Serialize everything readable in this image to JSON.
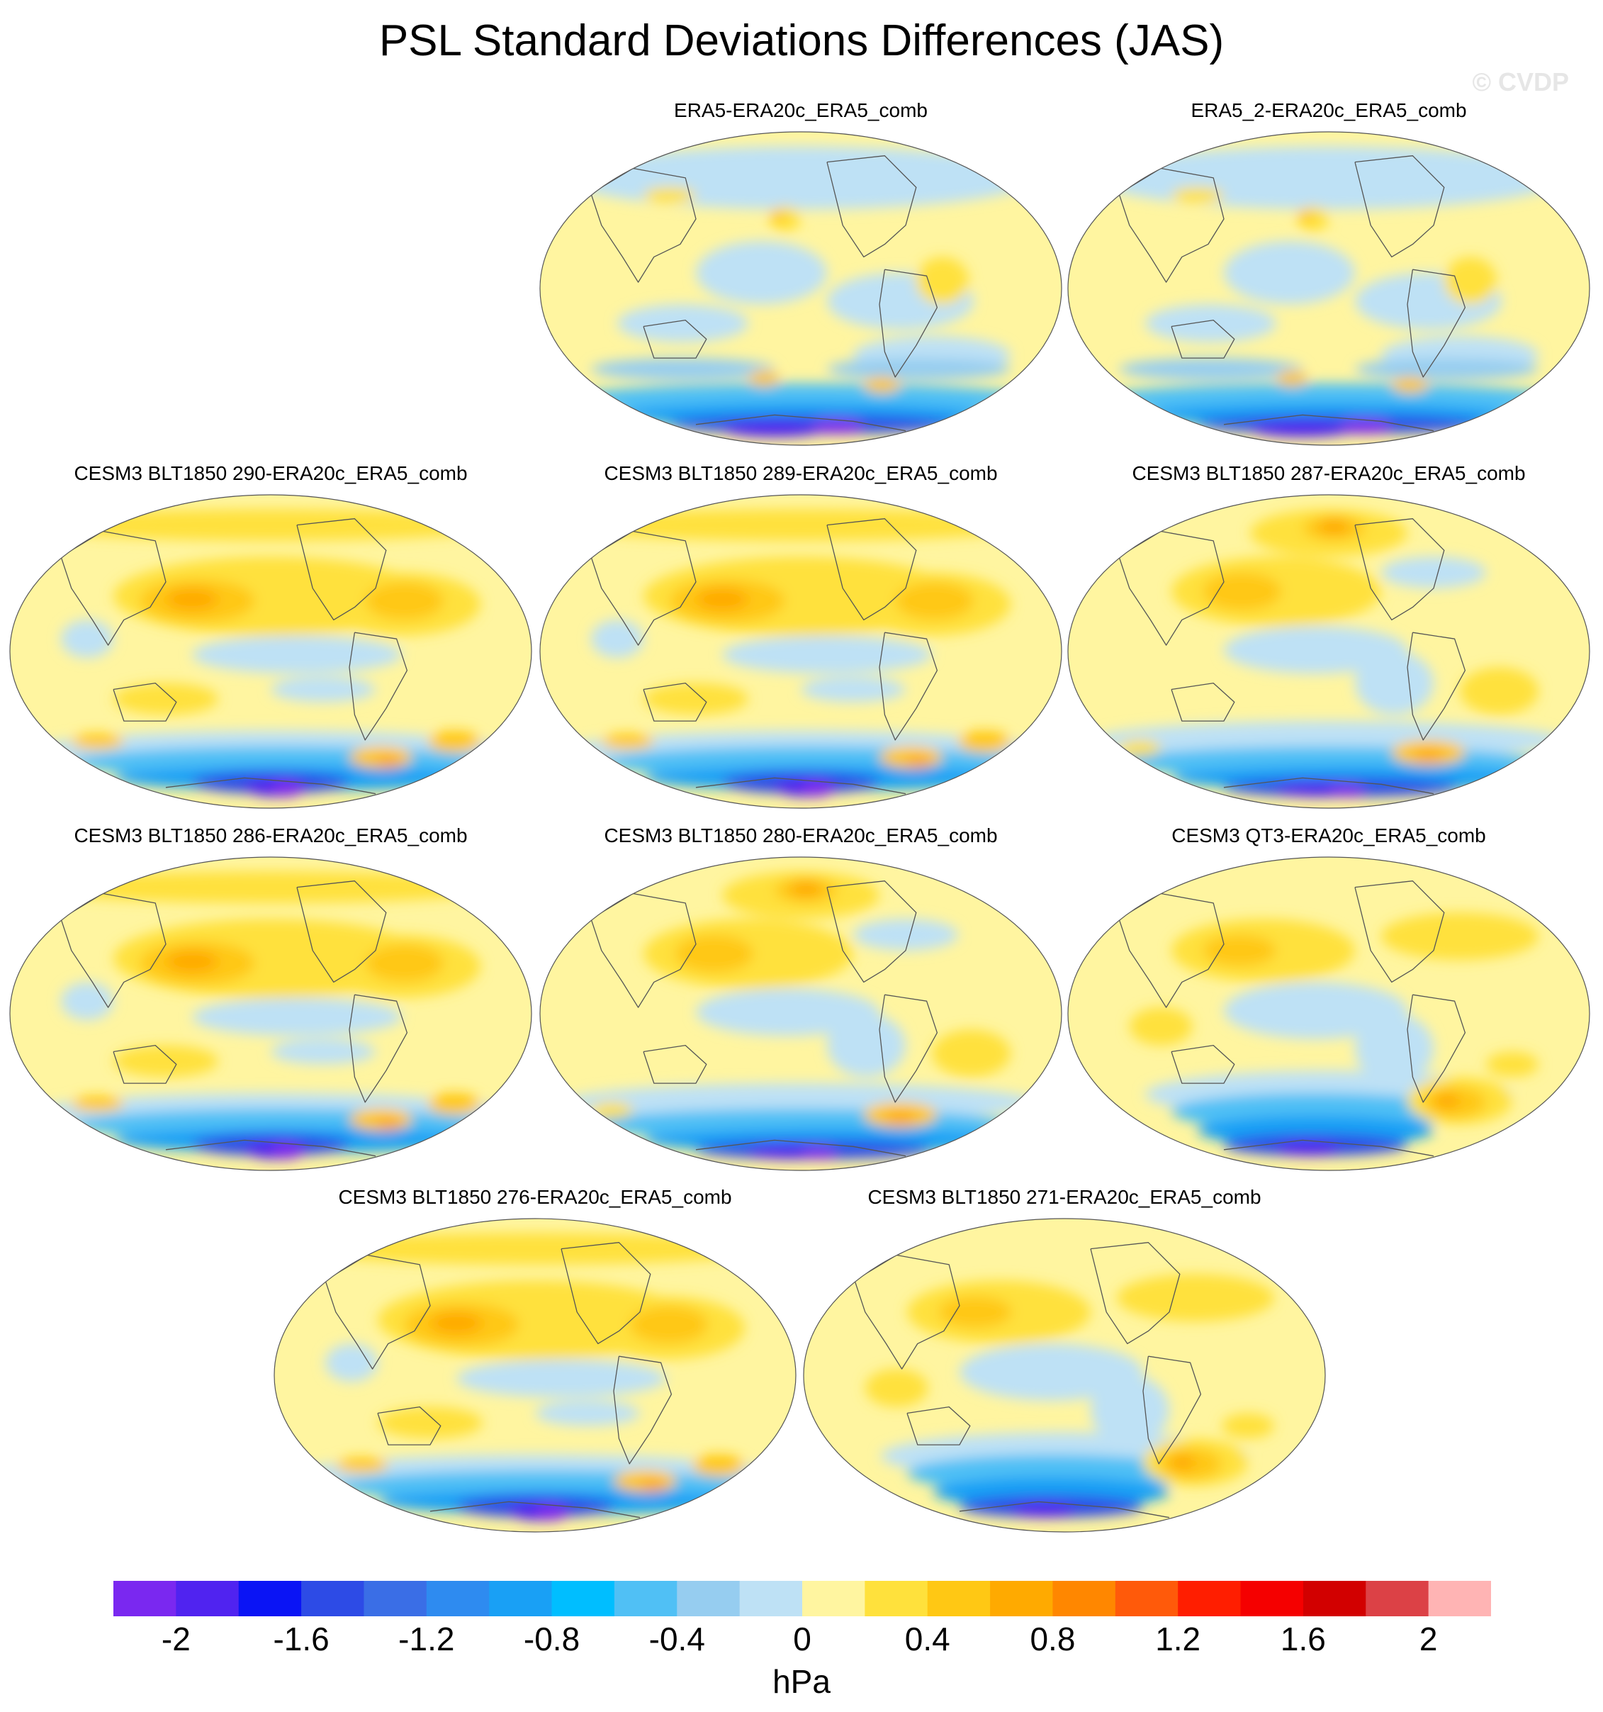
{
  "title": "PSL Standard Deviations Differences (JAS)",
  "watermark": "© CVDP",
  "chart_data": {
    "type": "heatmap",
    "projection": "global map (Robinson-like), Pacific-centered",
    "variable": "PSL",
    "units": "hPa",
    "colorbar": {
      "levels": [
        -2.2,
        -2.0,
        -1.8,
        -1.6,
        -1.4,
        -1.2,
        -1.0,
        -0.8,
        -0.6,
        -0.4,
        -0.2,
        0.0,
        0.2,
        0.4,
        0.6,
        0.8,
        1.0,
        1.2,
        1.4,
        1.6,
        1.8,
        2.0,
        2.2
      ],
      "tick_values": [
        -2,
        -1.6,
        -1.2,
        -0.8,
        -0.4,
        0,
        0.4,
        0.8,
        1.2,
        1.6,
        2
      ],
      "tick_labels": [
        "-2",
        "-1.6",
        "-1.2",
        "-0.8",
        "-0.4",
        "0",
        "0.4",
        "0.8",
        "1.2",
        "1.6",
        "2"
      ],
      "colors": [
        "#7a28f0",
        "#5023f0",
        "#0a14f5",
        "#2d4be6",
        "#3a6ee6",
        "#2e8bf0",
        "#19a0f5",
        "#00beff",
        "#50c0f5",
        "#96cdf0",
        "#bee1f5",
        "#fff5a0",
        "#ffe13c",
        "#ffc814",
        "#ffaa00",
        "#ff8700",
        "#ff5a0a",
        "#ff1e00",
        "#f50000",
        "#d20000",
        "#dc4146",
        "#ffb4b4"
      ]
    },
    "panels": [
      {
        "title": "ERA5-ERA20c_ERA5_comb"
      },
      {
        "title": "ERA5_2-ERA20c_ERA5_comb"
      },
      {
        "title": "CESM3 BLT1850 290-ERA20c_ERA5_comb"
      },
      {
        "title": "CESM3 BLT1850 289-ERA20c_ERA5_comb"
      },
      {
        "title": "CESM3 BLT1850 287-ERA20c_ERA5_comb"
      },
      {
        "title": "CESM3 BLT1850 286-ERA20c_ERA5_comb"
      },
      {
        "title": "CESM3 BLT1850 280-ERA20c_ERA5_comb"
      },
      {
        "title": "CESM3 QT3-ERA20c_ERA5_comb"
      },
      {
        "title": "CESM3 BLT1850 276-ERA20c_ERA5_comb"
      },
      {
        "title": "CESM3 BLT1850 271-ERA20c_ERA5_comb"
      }
    ]
  }
}
